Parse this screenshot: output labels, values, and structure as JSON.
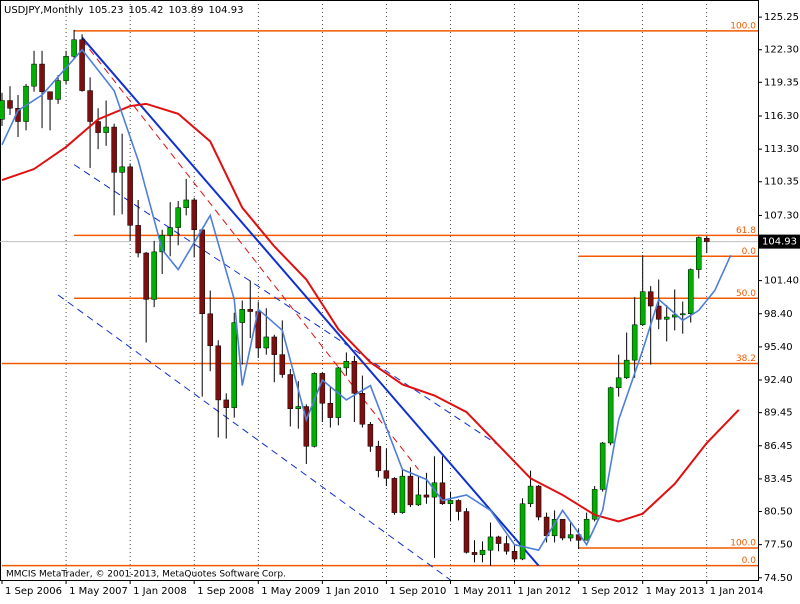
{
  "chart_data": {
    "type": "candlestick",
    "symbol": "USDJPY,Monthly",
    "footer": "MMCIS MetaTrader, © 2001-2013, MetaQuotes Software Corp.",
    "categories": [
      "1 Sep 2006",
      null,
      null,
      null,
      null,
      null,
      null,
      null,
      "1 May 2007",
      null,
      null,
      null,
      null,
      null,
      null,
      null,
      "1 Jan 2008",
      null,
      null,
      null,
      null,
      null,
      null,
      null,
      "1 Sep 2008",
      null,
      null,
      null,
      null,
      null,
      null,
      null,
      "1 May 2009",
      null,
      null,
      null,
      null,
      null,
      null,
      null,
      "1 Jan 2010",
      null,
      null,
      null,
      null,
      null,
      null,
      null,
      "1 Sep 2010",
      null,
      null,
      null,
      null,
      null,
      null,
      null,
      "1 May 2011",
      null,
      null,
      null,
      null,
      null,
      null,
      null,
      "1 Jan 2012",
      null,
      null,
      null,
      null,
      null,
      null,
      null,
      "1 Sep 2012",
      null,
      null,
      null,
      null,
      null,
      null,
      null,
      "1 May 2013",
      null,
      null,
      null,
      null,
      null,
      null,
      null,
      "1 Jan 2014"
    ],
    "open": [
      116.0,
      117.7,
      117.0,
      115.8,
      119.0,
      121.0,
      118.5,
      117.8,
      119.5,
      121.7,
      123.2,
      118.6,
      115.8,
      114.8,
      115.3,
      111.2,
      111.7,
      106.4,
      103.9,
      99.7,
      104.0,
      105.5,
      106.2,
      108.0,
      108.7,
      106.0,
      98.4,
      95.5,
      90.6,
      89.9,
      97.6,
      98.8,
      98.6,
      95.3,
      96.3,
      94.7,
      92.9,
      89.8,
      90.0,
      86.4,
      93.0,
      90.3,
      89.0,
      93.5,
      94.1,
      91.2,
      88.4,
      86.4,
      84.2,
      83.5,
      80.4,
      83.7,
      81.1,
      82.0,
      81.8,
      83.1,
      81.2,
      81.5,
      80.5,
      76.8,
      76.6,
      77.0,
      78.2,
      77.6,
      76.9,
      76.2,
      81.2,
      82.8,
      80.0,
      78.3,
      79.8,
      78.1,
      78.4,
      77.9,
      79.8,
      82.5,
      86.7,
      91.7,
      92.6,
      94.2,
      97.4,
      100.4,
      99.1,
      97.9,
      98.1,
      98.3,
      98.4,
      102.4,
      105.23
    ],
    "high": [
      118.4,
      119.0,
      118.2,
      119.2,
      122.2,
      122.2,
      118.5,
      120.0,
      122.2,
      124.1,
      123.7,
      119.8,
      117.0,
      117.7,
      115.6,
      114.7,
      112.0,
      108.7,
      104.0,
      105.0,
      106.0,
      108.5,
      108.6,
      110.6,
      108.9,
      106.0,
      100.5,
      96.0,
      91.2,
      98.5,
      99.6,
      101.4,
      99.5,
      98.9,
      96.5,
      97.8,
      93.4,
      92.3,
      90.2,
      93.1,
      93.1,
      91.8,
      93.6,
      94.9,
      94.6,
      92.8,
      88.6,
      86.9,
      86.2,
      83.6,
      84.4,
      84.5,
      83.7,
      84.0,
      85.5,
      85.5,
      82.3,
      81.6,
      80.8,
      77.9,
      77.8,
      79.5,
      78.3,
      78.3,
      77.5,
      81.7,
      84.2,
      82.9,
      80.4,
      80.6,
      79.8,
      79.6,
      78.9,
      80.4,
      82.8,
      86.8,
      91.8,
      94.7,
      96.7,
      99.9,
      103.7,
      100.9,
      101.5,
      99.2,
      100.6,
      99.5,
      102.5,
      105.4,
      105.42
    ],
    "low": [
      115.4,
      116.4,
      114.4,
      115.0,
      118.5,
      115.2,
      115.0,
      117.4,
      119.2,
      121.5,
      118.5,
      111.6,
      113.3,
      113.6,
      107.3,
      107.4,
      105.0,
      103.5,
      95.8,
      99.0,
      102.0,
      103.6,
      104.6,
      107.3,
      103.5,
      90.9,
      93.2,
      87.2,
      87.1,
      89.0,
      93.8,
      96.2,
      94.4,
      94.7,
      92.2,
      92.6,
      88.2,
      88.0,
      84.8,
      86.3,
      88.6,
      88.1,
      88.3,
      92.8,
      88.6,
      88.1,
      85.9,
      83.6,
      82.8,
      80.2,
      80.3,
      80.9,
      81.0,
      81.2,
      76.3,
      81.1,
      79.6,
      79.7,
      76.7,
      75.9,
      75.9,
      75.6,
      76.9,
      76.6,
      75.9,
      76.1,
      80.9,
      79.7,
      77.7,
      77.7,
      77.9,
      77.8,
      77.1,
      77.9,
      79.6,
      82.3,
      86.5,
      90.9,
      92.5,
      92.6,
      97.3,
      93.8,
      97.0,
      95.9,
      96.9,
      96.6,
      97.6,
      101.6,
      103.89
    ],
    "close": [
      117.7,
      117.0,
      115.8,
      119.0,
      121.0,
      118.5,
      117.8,
      119.5,
      121.7,
      123.2,
      118.6,
      115.8,
      114.8,
      115.3,
      111.2,
      111.7,
      106.4,
      103.9,
      99.7,
      104.0,
      105.5,
      106.2,
      108.0,
      108.7,
      106.0,
      98.4,
      95.5,
      90.6,
      89.9,
      97.6,
      98.8,
      98.6,
      95.3,
      96.3,
      94.7,
      92.9,
      89.8,
      90.0,
      86.4,
      93.0,
      90.3,
      89.0,
      93.5,
      94.1,
      91.2,
      88.4,
      86.4,
      84.2,
      83.5,
      80.4,
      83.7,
      81.1,
      82.0,
      81.8,
      83.1,
      81.2,
      81.5,
      80.5,
      76.8,
      76.6,
      77.0,
      78.2,
      77.6,
      76.9,
      76.2,
      81.2,
      82.8,
      80.0,
      78.3,
      79.8,
      78.1,
      78.4,
      77.9,
      79.8,
      82.5,
      86.7,
      91.7,
      92.6,
      94.2,
      97.4,
      100.4,
      99.1,
      97.9,
      98.1,
      98.3,
      98.4,
      102.4,
      105.3,
      104.93
    ],
    "up_color": "#00b000",
    "down_color": "#7a1010",
    "overlays": [
      {
        "color": "#e01010",
        "x": [
          0,
          4,
          8,
          12,
          16,
          18,
          22,
          26,
          30,
          34,
          38,
          42,
          46,
          50,
          54,
          58,
          62,
          66,
          70,
          74,
          77,
          80,
          84,
          88,
          92
        ],
        "values": [
          110.5,
          111.5,
          113.5,
          116.0,
          117.2,
          117.4,
          116.5,
          114.0,
          108.0,
          104.5,
          101.5,
          97.0,
          94.0,
          92.0,
          91.0,
          89.5,
          86.5,
          83.5,
          82.0,
          80.2,
          79.6,
          80.3,
          83.0,
          86.7,
          89.7
        ]
      },
      {
        "color": "#4f7fd8",
        "x": [
          0,
          2,
          5,
          10,
          14,
          17,
          20,
          22,
          26,
          29,
          30,
          32,
          35,
          38,
          40,
          43,
          46,
          50,
          53,
          55,
          58,
          61,
          64,
          67,
          70,
          73,
          75,
          77,
          80,
          82,
          85,
          87,
          89,
          91
        ],
        "values": [
          113.7,
          116.8,
          118.2,
          122.3,
          118.6,
          112.3,
          104.2,
          102.4,
          107.3,
          99.7,
          91.9,
          98.8,
          96.9,
          88.8,
          92.4,
          90.6,
          91.9,
          84.3,
          83.4,
          81.5,
          82.0,
          80.6,
          77.5,
          77.0,
          80.6,
          77.5,
          80.6,
          88.8,
          95.1,
          99.7,
          97.8,
          98.7,
          100.5,
          103.7
        ]
      }
    ],
    "trendlines": [
      {
        "x": [
          10,
          67
        ],
        "y": [
          123.4,
          75.6
        ],
        "color": "#1030d0",
        "width": 2,
        "dashed": false
      },
      {
        "x": [
          9,
          62
        ],
        "y": [
          111.9,
          86.5
        ],
        "color": "#1030d0",
        "width": 1,
        "dashed": true
      },
      {
        "x": [
          7,
          56
        ],
        "y": [
          100.1,
          74.3
        ],
        "color": "#1030d0",
        "width": 1,
        "dashed": true
      },
      {
        "x": [
          10,
          52
        ],
        "y": [
          123.2,
          84.3
        ],
        "color": "#e01010",
        "width": 1,
        "dashed": true
      }
    ],
    "levels": [
      {
        "label": "100.0",
        "value": 124.0,
        "start": 9
      },
      {
        "label": "61.8",
        "value": 105.5,
        "start": 9
      },
      {
        "label": "0.0",
        "value": 103.6,
        "start": 72
      },
      {
        "label": "50.0",
        "value": 99.8,
        "start": 9
      },
      {
        "label": "38.2",
        "value": 93.9,
        "start": 0
      },
      {
        "label": "100.0",
        "value": 77.2,
        "start": 72
      },
      {
        "label": "0.0",
        "value": 75.6,
        "start": 0
      }
    ],
    "level_color": "#f05a00",
    "xlim": [
      -0.25,
      94.4
    ],
    "ylim": [
      74.3,
      126.8
    ],
    "yticks": [
      125.25,
      {
        "value": 122.3,
        "label": "122.30"
      },
      119.35,
      {
        "value": 116.3,
        "label": "116.30"
      },
      {
        "value": 113.3,
        "label": "113.30"
      },
      110.35,
      {
        "value": 107.3,
        "label": "107.30"
      },
      {
        "value": 101.4,
        "label": "101.40"
      },
      {
        "value": 98.4,
        "label": "98.40"
      },
      {
        "value": 95.4,
        "label": "95.40"
      },
      {
        "value": 92.4,
        "label": "92.40"
      },
      89.45,
      86.45,
      83.45,
      {
        "value": 80.5,
        "label": "80.50"
      },
      {
        "value": 77.5,
        "label": "77.50"
      },
      {
        "value": 74.5,
        "label": "74.50"
      }
    ],
    "grid": true
  }
}
